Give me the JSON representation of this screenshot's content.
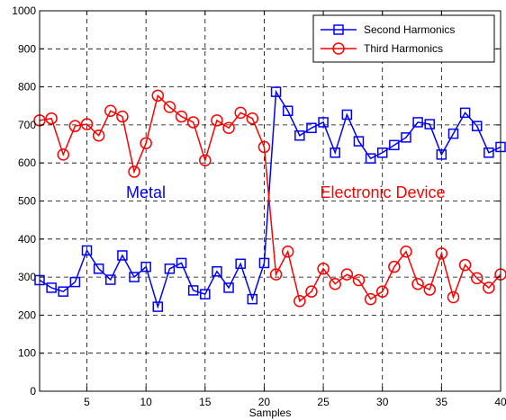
{
  "chart_data": {
    "type": "line",
    "xlabel": "Samples",
    "ylabel": "",
    "xlim": [
      1,
      40
    ],
    "ylim": [
      0,
      1000
    ],
    "xticks": [
      5,
      10,
      15,
      20,
      25,
      30,
      35,
      40
    ],
    "yticks": [
      0,
      100,
      200,
      300,
      400,
      500,
      600,
      700,
      800,
      900,
      1000
    ],
    "grid": true,
    "legend_position": "top-right",
    "x": [
      1,
      2,
      3,
      4,
      5,
      6,
      7,
      8,
      9,
      10,
      11,
      12,
      13,
      14,
      15,
      16,
      17,
      18,
      19,
      20,
      21,
      22,
      23,
      24,
      25,
      26,
      27,
      28,
      29,
      30,
      31,
      32,
      33,
      34,
      35,
      36,
      37,
      38,
      39,
      40
    ],
    "series": [
      {
        "name": "Second Harmonics",
        "color": "#0000ff",
        "marker": "square",
        "values": [
          292,
          272,
          262,
          287,
          370,
          322,
          293,
          357,
          300,
          327,
          222,
          322,
          337,
          265,
          255,
          315,
          272,
          335,
          242,
          337,
          787,
          737,
          672,
          692,
          707,
          627,
          727,
          657,
          612,
          627,
          647,
          667,
          707,
          702,
          622,
          677,
          732,
          697,
          627,
          642
        ]
      },
      {
        "name": "Third Harmonics",
        "color": "#ff0000",
        "marker": "circle",
        "values": [
          712,
          717,
          622,
          697,
          702,
          672,
          737,
          722,
          577,
          652,
          777,
          747,
          722,
          707,
          607,
          712,
          692,
          732,
          717,
          642,
          307,
          367,
          237,
          262,
          322,
          282,
          307,
          292,
          242,
          262,
          327,
          367,
          282,
          267,
          362,
          247,
          332,
          297,
          272,
          307
        ]
      }
    ],
    "annotations": [
      {
        "text": "Metal",
        "color": "#0000ff"
      },
      {
        "text": "Electronic Device",
        "color": "#ff0000"
      }
    ]
  }
}
